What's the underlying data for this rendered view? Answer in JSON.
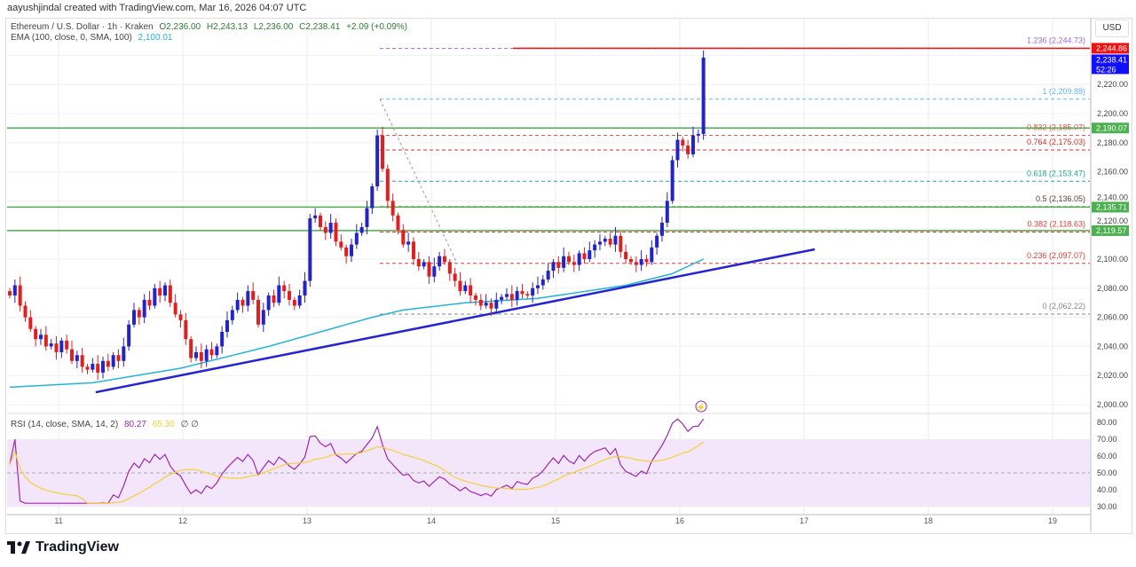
{
  "header": {
    "text": "aayushjindal created with TradingView.com, Mar 16, 2026 04:07 UTC"
  },
  "legend": {
    "symbol": "Ethereum / U.S. Dollar · 1h · Kraken",
    "open": "O2,236.00",
    "high": "H2,243.13",
    "low": "L2,236.00",
    "close": "C2,238.41",
    "change": "+2.09 (+0.09%)",
    "ema_label": "EMA (100, close, 0, SMA, 100)",
    "ema_value": "2,100.01",
    "rsi_label": "RSI (14, close, SMA, 14, 2)",
    "rsi_value": "80.27",
    "rsi_sma_value": "65.30",
    "rsi_extra": "∅ ∅"
  },
  "currency": "USD",
  "footer": {
    "brand": "TradingView"
  },
  "colors": {
    "up": "#2323c8",
    "down": "#e02020",
    "ema": "#22b5d8",
    "trendline": "#2424d0",
    "rsi": "#9c27b0",
    "rsi_sma": "#f5d033",
    "level": "#4caf50",
    "last_price": "#1010ff",
    "high_price": "#f01010"
  },
  "chart_data": {
    "type": "candlestick",
    "timeframe": "1h",
    "x_ticks": [
      "11",
      "12",
      "13",
      "14",
      "15",
      "16",
      "17",
      "18",
      "19"
    ],
    "y_ticks": [
      "2,000.00",
      "2,020.00",
      "2,040.00",
      "2,060.00",
      "2,080.00",
      "2,100.00",
      "2,120.00",
      "2,140.00",
      "2,160.00",
      "2,180.00",
      "2,200.00",
      "2,220.00"
    ],
    "ylim": [
      1990,
      2255
    ],
    "closes": [
      2075,
      2082,
      2068,
      2060,
      2052,
      2045,
      2048,
      2040,
      2042,
      2036,
      2044,
      2038,
      2030,
      2034,
      2026,
      2024,
      2028,
      2022,
      2030,
      2026,
      2034,
      2030,
      2040,
      2055,
      2065,
      2060,
      2072,
      2068,
      2080,
      2075,
      2082,
      2070,
      2062,
      2058,
      2045,
      2032,
      2036,
      2030,
      2038,
      2034,
      2040,
      2050,
      2058,
      2065,
      2072,
      2068,
      2078,
      2072,
      2055,
      2065,
      2075,
      2070,
      2082,
      2078,
      2072,
      2068,
      2075,
      2085,
      2128,
      2130,
      2122,
      2118,
      2125,
      2112,
      2108,
      2102,
      2110,
      2118,
      2122,
      2135,
      2150,
      2185,
      2162,
      2140,
      2130,
      2120,
      2110,
      2112,
      2100,
      2095,
      2098,
      2088,
      2095,
      2102,
      2098,
      2090,
      2085,
      2078,
      2082,
      2075,
      2072,
      2068,
      2070,
      2066,
      2072,
      2074,
      2076,
      2072,
      2078,
      2076,
      2075,
      2080,
      2082,
      2086,
      2092,
      2098,
      2094,
      2102,
      2098,
      2096,
      2104,
      2100,
      2106,
      2110,
      2112,
      2114,
      2110,
      2116,
      2105,
      2100,
      2098,
      2096,
      2100,
      2098,
      2108,
      2116,
      2125,
      2140,
      2168,
      2182,
      2178,
      2172,
      2185,
      2186,
      2238.41
    ],
    "ema100": [
      [
        0,
        2012
      ],
      [
        16,
        2015
      ],
      [
        33,
        2025
      ],
      [
        50,
        2040
      ],
      [
        62,
        2052
      ],
      [
        70,
        2060
      ],
      [
        76,
        2065
      ],
      [
        88,
        2070
      ],
      [
        102,
        2073
      ],
      [
        119,
        2082
      ],
      [
        128,
        2090
      ],
      [
        134,
        2100
      ]
    ],
    "trendline": [
      [
        16.6,
        2008.5
      ],
      [
        155.5,
        2106.7
      ]
    ],
    "fib_levels": [
      {
        "ratio": "0",
        "price": "2,062.22",
        "value": 2062.22,
        "color": "#888888"
      },
      {
        "ratio": "0.236",
        "price": "2,097.07",
        "value": 2097.07,
        "color": "#e53935"
      },
      {
        "ratio": "0.382",
        "price": "2,118.63",
        "value": 2118.63,
        "color": "#e53935"
      },
      {
        "ratio": "0.5",
        "price": "2,136.05",
        "value": 2136.05,
        "color": "#5d4037"
      },
      {
        "ratio": "0.618",
        "price": "2,153.47",
        "value": 2153.47,
        "color": "#26a69a"
      },
      {
        "ratio": "0.764",
        "price": "2,175.03",
        "value": 2175.03,
        "color": "#d32f2f"
      },
      {
        "ratio": "0.832",
        "price": "2,185.07",
        "value": 2185.07,
        "color": "#ef5350"
      },
      {
        "ratio": "1",
        "price": "2,209.88",
        "value": 2209.88,
        "color": "#64b5f6"
      },
      {
        "ratio": "1.236",
        "price": "2,244.73",
        "value": 2244.73,
        "color": "#9c6ade"
      }
    ],
    "levels": [
      2190.07,
      2135.71,
      2119.57
    ],
    "price_labels": [
      {
        "text": "2,244.86",
        "value": 2244.86,
        "color": "#f01010"
      },
      {
        "text": "2,238.41",
        "sub": "52:26",
        "value": 2238.41,
        "color": "#1010ff"
      },
      {
        "text": "2,190.07",
        "value": 2190.07,
        "color": "#4caf50"
      },
      {
        "text": "2,135.71",
        "value": 2135.71,
        "color": "#4caf50"
      },
      {
        "text": "2,119.57",
        "value": 2119.57,
        "color": "#4caf50"
      }
    ],
    "rsi_ticks": [
      "80.00",
      "70.00",
      "60.00",
      "50.00",
      "40.00",
      "30.00"
    ]
  }
}
